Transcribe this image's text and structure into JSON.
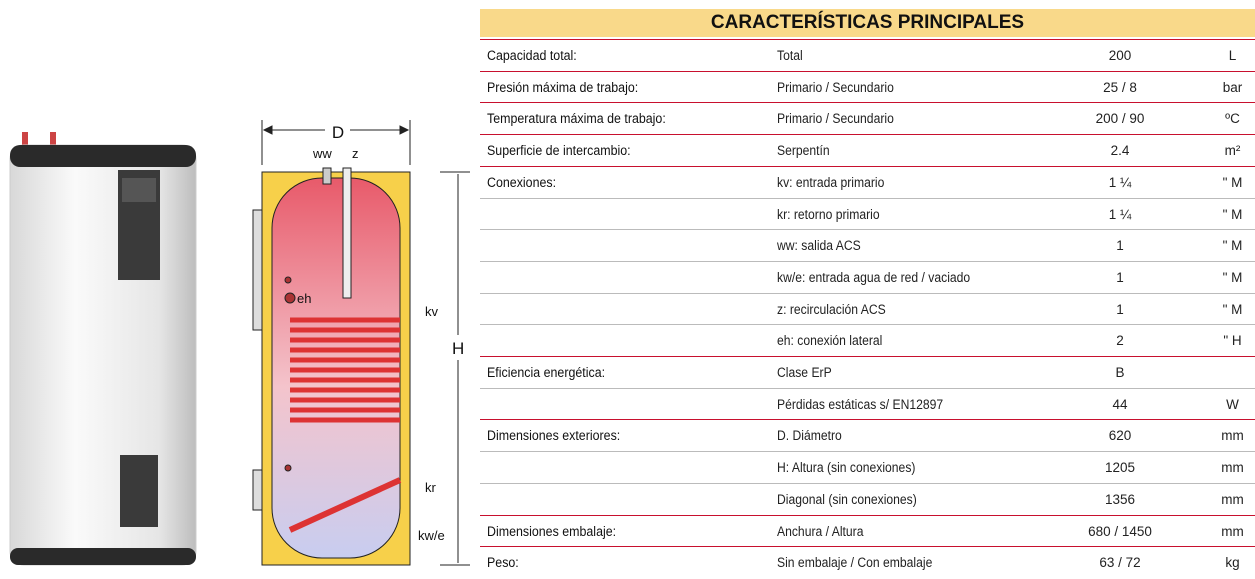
{
  "header": {
    "title": "CARACTERÍSTICAS PRINCIPALES"
  },
  "diagram": {
    "width_label": "D",
    "height_label": "H",
    "ports": {
      "ww": "ww",
      "z": "z",
      "eh": "eh",
      "kv": "kv",
      "kr": "kr",
      "kwe": "kw/e"
    }
  },
  "table": {
    "groups": [
      {
        "label": "Capacidad total:",
        "rows": [
          {
            "desc": "Total",
            "value": "200",
            "unit": "L"
          }
        ]
      },
      {
        "label": "Presión máxima de trabajo:",
        "rows": [
          {
            "desc": "Primario / Secundario",
            "value": "25 / 8",
            "unit": "bar"
          }
        ]
      },
      {
        "label": "Temperatura máxima de trabajo:",
        "rows": [
          {
            "desc": "Primario / Secundario",
            "value": "200 / 90",
            "unit": "ºC"
          }
        ]
      },
      {
        "label": "Superficie de intercambio:",
        "rows": [
          {
            "desc": "Serpentín",
            "value": "2.4",
            "unit": "m²"
          }
        ]
      },
      {
        "label": "Conexiones:",
        "rows": [
          {
            "desc": "kv: entrada primario",
            "value": "1 ¼",
            "unit": "\" M"
          },
          {
            "desc": "kr: retorno primario",
            "value": "1 ¼",
            "unit": "\" M"
          },
          {
            "desc": "ww: salida ACS",
            "value": "1",
            "unit": "\" M"
          },
          {
            "desc": "kw/e: entrada agua de red / vaciado",
            "value": "1",
            "unit": "\" M"
          },
          {
            "desc": "z: recirculación ACS",
            "value": "1",
            "unit": "\" M"
          },
          {
            "desc": "eh: conexión lateral",
            "value": "2",
            "unit": "\" H"
          }
        ]
      },
      {
        "label": "Eficiencia energética:",
        "rows": [
          {
            "desc": "Clase ErP",
            "value": "B"
          },
          {
            "desc": "Pérdidas estáticas s/ EN12897",
            "value": "44",
            "unit": "W"
          }
        ]
      },
      {
        "label": "Dimensiones exteriores:",
        "rows": [
          {
            "desc": "D. Diámetro",
            "value": "620",
            "unit": "mm"
          },
          {
            "desc": "H: Altura (sin conexiones)",
            "value": "1205",
            "unit": "mm"
          },
          {
            "desc": "Diagonal (sin conexiones)",
            "value": "1356",
            "unit": "mm"
          }
        ]
      },
      {
        "label": "Dimensiones embalaje:",
        "rows": [
          {
            "desc": "Anchura / Altura",
            "value": "680 / 1450",
            "unit": "mm"
          }
        ]
      },
      {
        "label": "Peso:",
        "rows": [
          {
            "desc": "Sin embalaje / Con embalaje",
            "value": "63 / 72",
            "unit": "kg"
          }
        ]
      }
    ]
  }
}
